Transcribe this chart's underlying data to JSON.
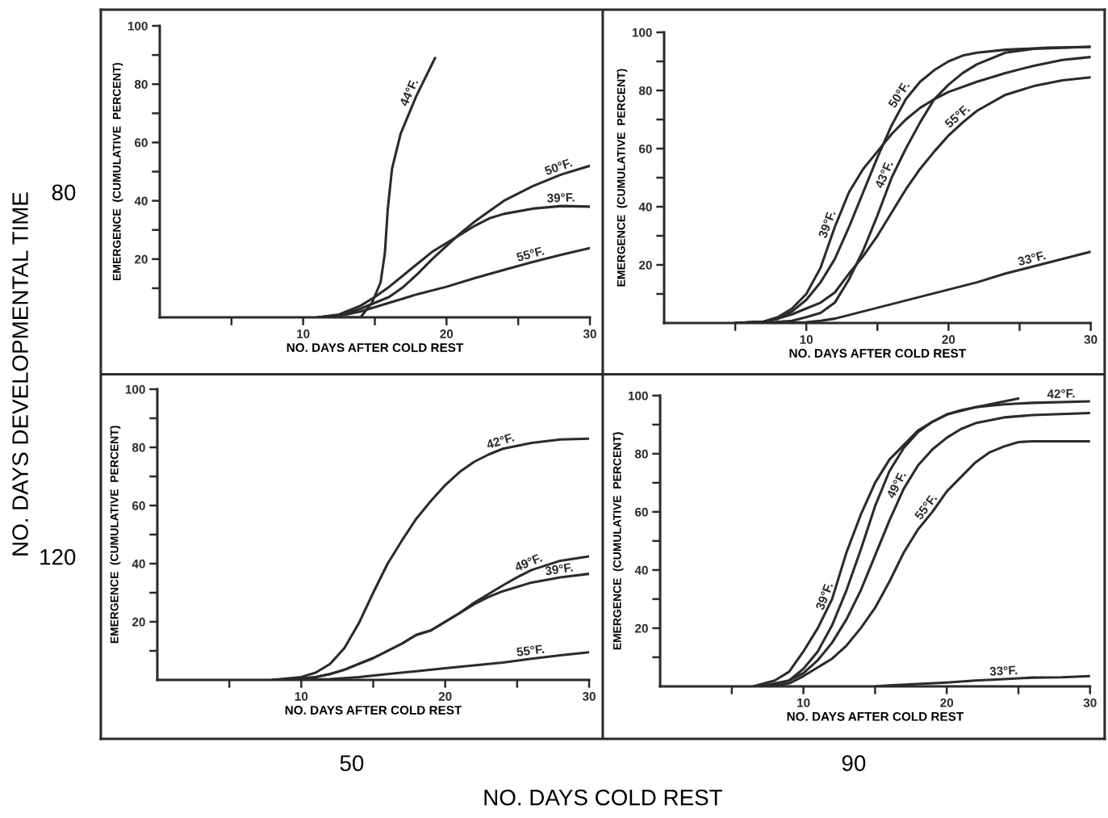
{
  "chart_data": [
    {
      "type": "other",
      "xlabel": "NO. DAYS COLD REST",
      "ylabel": "NO. DAYS DEVELOPMENTAL TIME",
      "categories": [
        "50",
        "90"
      ],
      "y_categories": [
        "80",
        "120"
      ]
    },
    {
      "type": "line",
      "xlabel": "NO. DAYS AFTER COLD REST",
      "ylabel": "EMERGENCE  (CUMULATIVE  PERCENT)",
      "xlim": [
        0,
        30
      ],
      "ylim": [
        0,
        100
      ],
      "xticks": [
        {
          "value": 5,
          "label": null
        },
        10,
        {
          "value": 15,
          "label": null
        },
        20,
        {
          "value": 25,
          "label": null
        },
        30
      ],
      "yticks": [
        {
          "value": 10,
          "label": null
        },
        20,
        {
          "value": 30,
          "label": null
        },
        40,
        {
          "value": 50,
          "label": null
        },
        60,
        {
          "value": 70,
          "label": null
        },
        80,
        {
          "value": 90,
          "label": null
        },
        100
      ],
      "series": [
        {
          "color": "#2b2b2b",
          "x": [
            11,
            14,
            14.8,
            15.4,
            15.7,
            15.9,
            16.2,
            16.8,
            17.9,
            19.2
          ],
          "values": [
            0,
            0,
            5,
            12,
            22,
            37,
            51,
            63,
            76,
            89
          ]
        },
        {
          "color": "#2b2b2b",
          "x": [
            11,
            12.5,
            14,
            15,
            16,
            17,
            18,
            19,
            20,
            21,
            22,
            23,
            24,
            26,
            28,
            30
          ],
          "values": [
            0,
            0.5,
            3,
            5,
            7,
            10.5,
            15,
            20,
            24.5,
            29,
            33,
            36.5,
            40,
            45,
            49,
            52
          ]
        },
        {
          "color": "#2b2b2b",
          "x": [
            11,
            12.5,
            14,
            15,
            16,
            17,
            18,
            19,
            20,
            21,
            22,
            23,
            24,
            26,
            28,
            30
          ],
          "values": [
            0,
            1,
            4,
            7,
            10.5,
            14.5,
            18.5,
            22.5,
            25.5,
            28.5,
            31.5,
            34,
            35.5,
            37.3,
            38.2,
            38
          ]
        },
        {
          "color": "#2b2b2b",
          "x": [
            11,
            13,
            14,
            16,
            18,
            20,
            22,
            24,
            26,
            28,
            30
          ],
          "values": [
            0,
            1,
            2,
            5,
            8,
            10.5,
            13.5,
            16.3,
            19,
            21.5,
            23.8
          ]
        }
      ],
      "annotations": [
        {
          "text": "44°F.",
          "x": 17.9,
          "y": 76
        },
        {
          "text": "50°F.",
          "x": 28,
          "y": 49
        },
        {
          "text": "39°F.",
          "x": 28,
          "y": 38.2
        },
        {
          "text": "55°F.",
          "x": 26,
          "y": 19
        }
      ]
    },
    {
      "type": "line",
      "xlabel": "NO. DAYS AFTER COLD REST",
      "ylabel": "EMERGENCE  (CUMULATIVE  PERCENT)",
      "xlim": [
        0,
        30
      ],
      "ylim": [
        0,
        100
      ],
      "xticks": [
        {
          "value": 5,
          "label": null
        },
        10,
        {
          "value": 15,
          "label": null
        },
        20,
        {
          "value": 25,
          "label": null
        },
        30
      ],
      "yticks": [
        {
          "value": 10,
          "label": null
        },
        20,
        {
          "value": 30,
          "label": null
        },
        40,
        {
          "value": 50,
          "label": null
        },
        60,
        {
          "value": 70,
          "label": null
        },
        80,
        {
          "value": 90,
          "label": null
        },
        100
      ],
      "series": [
        {
          "color": "#2b2b2b",
          "x": [
            5,
            7,
            8,
            9,
            10,
            11,
            12,
            13,
            14,
            15,
            16,
            17,
            18,
            19,
            20,
            21,
            22,
            24,
            27,
            30
          ],
          "values": [
            0,
            0.5,
            1.5,
            4,
            8,
            14,
            22,
            33,
            45,
            57,
            68,
            77,
            83,
            87,
            90,
            92,
            93,
            94,
            94.7,
            95
          ]
        },
        {
          "color": "#2b2b2b",
          "x": [
            5,
            7,
            8,
            9,
            10,
            11,
            12,
            13,
            14,
            15,
            16,
            17,
            18,
            19,
            20,
            22,
            24,
            26,
            28,
            30
          ],
          "values": [
            0,
            0.5,
            2,
            5,
            10,
            19,
            33,
            45,
            53,
            59,
            65,
            70,
            74,
            77,
            79.5,
            83,
            86,
            88.5,
            90.5,
            91.5
          ]
        },
        {
          "color": "#2b2b2b",
          "x": [
            7,
            9,
            10,
            11,
            12,
            13,
            14,
            15,
            16,
            17,
            18,
            19,
            20,
            21,
            22,
            24,
            26,
            30
          ],
          "values": [
            0,
            0.8,
            2,
            3.5,
            7,
            15,
            25,
            37,
            50,
            60,
            69,
            77,
            82,
            86,
            89,
            93,
            94.3,
            95
          ]
        },
        {
          "color": "#2b2b2b",
          "x": [
            5,
            7,
            8,
            9,
            10,
            11,
            12,
            13,
            14,
            15,
            16,
            17,
            18,
            19,
            20,
            21,
            22,
            24,
            26,
            28,
            30
          ],
          "values": [
            0,
            0.5,
            1.5,
            3,
            5,
            7,
            10.5,
            17,
            23,
            30,
            38,
            46,
            53,
            59,
            64.5,
            69,
            73,
            78.5,
            81.5,
            83.5,
            84.5
          ]
        },
        {
          "color": "#2b2b2b",
          "x": [
            8,
            10,
            11,
            12,
            14,
            16,
            18,
            20,
            22,
            24,
            26,
            28,
            30
          ],
          "values": [
            0,
            0.3,
            0.8,
            1.5,
            4,
            6.5,
            9,
            11.5,
            14,
            17,
            19.5,
            22,
            24.5
          ]
        }
      ],
      "annotations": [
        {
          "text": "50°F.",
          "x": 17,
          "y": 77
        },
        {
          "text": "39°F.",
          "x": 12,
          "y": 33
        },
        {
          "text": "43°F.",
          "x": 16,
          "y": 50
        },
        {
          "text": "55°F.",
          "x": 21,
          "y": 69
        },
        {
          "text": "33°F.",
          "x": 26,
          "y": 19.5
        }
      ]
    },
    {
      "type": "line",
      "xlabel": "NO. DAYS AFTER COLD REST",
      "ylabel": "EMERGENCE  (CUMULATIVE  PERCENT)",
      "xlim": [
        0,
        30
      ],
      "ylim": [
        0,
        100
      ],
      "xticks": [
        {
          "value": 5,
          "label": null
        },
        10,
        {
          "value": 15,
          "label": null
        },
        20,
        {
          "value": 25,
          "label": null
        },
        30
      ],
      "yticks": [
        {
          "value": 10,
          "label": null
        },
        20,
        {
          "value": 30,
          "label": null
        },
        40,
        {
          "value": 50,
          "label": null
        },
        60,
        {
          "value": 70,
          "label": null
        },
        80,
        {
          "value": 90,
          "label": null
        },
        100
      ],
      "series": [
        {
          "color": "#2b2b2b",
          "x": [
            8,
            10,
            11,
            12,
            13,
            14,
            15,
            16,
            17,
            18,
            19,
            20,
            21,
            22,
            23,
            24,
            26,
            28,
            30
          ],
          "values": [
            0,
            1,
            2.5,
            5.5,
            11,
            19.5,
            30,
            40,
            48,
            55.5,
            61.5,
            67,
            71.5,
            75,
            77.5,
            79.5,
            81.5,
            82.7,
            83
          ]
        },
        {
          "color": "#2b2b2b",
          "x": [
            8,
            10,
            11,
            12,
            13,
            14,
            15,
            16,
            17,
            18,
            19,
            20,
            21,
            22,
            23,
            24,
            25,
            26,
            28,
            30
          ],
          "values": [
            0,
            0.5,
            1,
            2,
            3.5,
            5.5,
            7.5,
            10,
            12.5,
            15.5,
            17,
            20,
            23,
            26.5,
            29.5,
            32.5,
            35.3,
            37.8,
            41,
            42.5
          ]
        },
        {
          "color": "#2b2b2b",
          "x": [
            8,
            10,
            11,
            12,
            13,
            14,
            15,
            16,
            17,
            18,
            19,
            20,
            21,
            22,
            23,
            24,
            26,
            28,
            30
          ],
          "values": [
            0,
            0.5,
            1,
            2,
            3.5,
            5.5,
            7.5,
            10,
            12.5,
            15.5,
            17,
            20,
            23,
            26,
            28.5,
            30.5,
            33.5,
            35.3,
            36.5
          ]
        },
        {
          "color": "#2b2b2b",
          "x": [
            10,
            12,
            14,
            16,
            18,
            20,
            22,
            24,
            26,
            28,
            30
          ],
          "values": [
            0,
            0.3,
            1,
            2,
            3,
            4,
            5,
            6,
            7.3,
            8.5,
            9.5
          ]
        }
      ],
      "annotations": [
        {
          "text": "42°F.",
          "x": 24,
          "y": 79.5
        },
        {
          "text": "49°F.",
          "x": 26,
          "y": 37.8
        },
        {
          "text": "39°F.",
          "x": 28,
          "y": 35.3
        },
        {
          "text": "55°F.",
          "x": 26,
          "y": 7.3
        }
      ]
    },
    {
      "type": "line",
      "xlabel": "NO. DAYS AFTER COLD REST",
      "ylabel": "EMERGENCE  (CUMULATIVE  PERCENT)",
      "xlim": [
        0,
        30
      ],
      "ylim": [
        0,
        100
      ],
      "xticks": [
        {
          "value": 5,
          "label": null
        },
        10,
        {
          "value": 15,
          "label": null
        },
        20,
        {
          "value": 25,
          "label": null
        },
        30
      ],
      "yticks": [
        {
          "value": 10,
          "label": null
        },
        20,
        {
          "value": 30,
          "label": null
        },
        40,
        {
          "value": 50,
          "label": null
        },
        60,
        {
          "value": 70,
          "label": null
        },
        80,
        {
          "value": 90,
          "label": null
        },
        100
      ],
      "series": [
        {
          "color": "#2b2b2b",
          "x": [
            6.5,
            8,
            9,
            10,
            11,
            12,
            13,
            14,
            15,
            16,
            17,
            18,
            19,
            20,
            21,
            23,
            25
          ],
          "values": [
            0,
            2,
            5,
            12,
            20,
            30,
            46,
            59,
            70,
            78,
            83,
            88,
            91,
            93.5,
            95,
            97,
            99
          ]
        },
        {
          "color": "#2b2b2b",
          "x": [
            7,
            9,
            10,
            11,
            12,
            13,
            14,
            15,
            16,
            17,
            18,
            19,
            20,
            22,
            24,
            26,
            30
          ],
          "values": [
            0,
            2,
            6,
            12,
            21,
            33,
            47,
            62,
            74,
            82,
            87.5,
            91,
            93.5,
            96,
            97,
            97.5,
            98
          ]
        },
        {
          "color": "#2b2b2b",
          "x": [
            7,
            8,
            9,
            10,
            11,
            12,
            13,
            14,
            15,
            16,
            17,
            18,
            19,
            20,
            21,
            22,
            24,
            26,
            30
          ],
          "values": [
            0,
            0.5,
            2,
            4.5,
            9,
            15,
            23,
            33,
            45,
            57,
            68,
            76,
            81.5,
            85.5,
            88.5,
            90.5,
            92.5,
            93.3,
            94
          ]
        },
        {
          "color": "#2b2b2b",
          "x": [
            8,
            9,
            10,
            11,
            12,
            13,
            14,
            15,
            16,
            17,
            18,
            19,
            20,
            21,
            22,
            23,
            24,
            25,
            26,
            30
          ],
          "values": [
            0,
            1,
            3.5,
            6.5,
            9.5,
            14,
            20,
            27,
            36,
            46,
            54,
            60,
            67,
            72,
            77,
            80.5,
            82.5,
            84,
            84.3,
            84.3
          ]
        },
        {
          "color": "#2b2b2b",
          "x": [
            15,
            16,
            18,
            20,
            22,
            24,
            26,
            28,
            30
          ],
          "values": [
            0,
            0.3,
            0.8,
            1.3,
            2,
            2.5,
            3,
            3.1,
            3.5
          ]
        }
      ],
      "annotations": [
        {
          "text": "39°F.",
          "x": 12,
          "y": 30
        },
        {
          "text": "42°F.",
          "x": 28,
          "y": 97.8
        },
        {
          "text": "49°F.",
          "x": 17,
          "y": 68
        },
        {
          "text": "55°F.",
          "x": 19,
          "y": 60
        },
        {
          "text": "33°F.",
          "x": 24,
          "y": 2.5
        }
      ]
    }
  ]
}
